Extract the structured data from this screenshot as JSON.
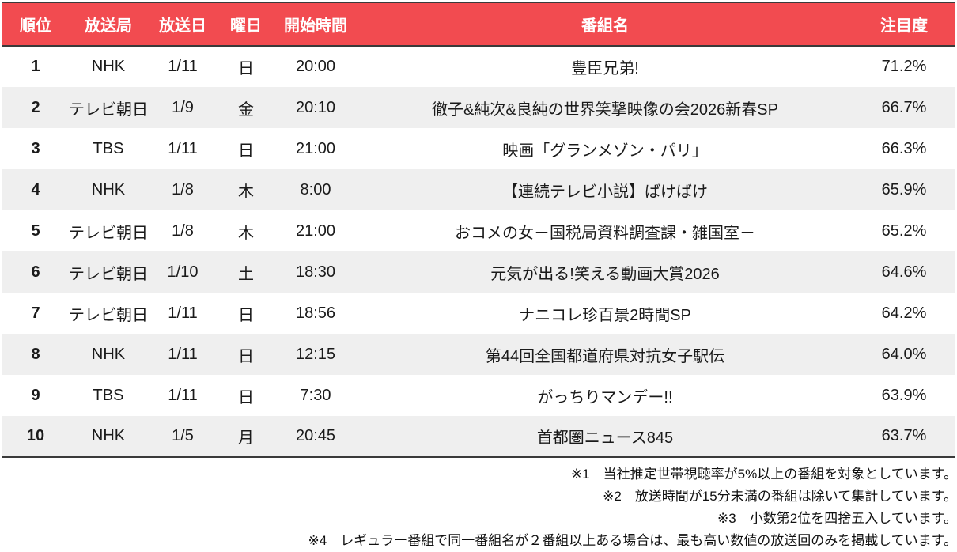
{
  "chart_data": {
    "type": "table",
    "title": "",
    "columns": [
      "順位",
      "放送局",
      "放送日",
      "曜日",
      "開始時間",
      "番組名",
      "注目度"
    ],
    "rows": [
      [
        "1",
        "NHK",
        "1/11",
        "日",
        "20:00",
        "豊臣兄弟!",
        "71.2%"
      ],
      [
        "2",
        "テレビ朝日",
        "1/9",
        "金",
        "20:10",
        "徹子&純次&良純の世界笑撃映像の会2026新春SP",
        "66.7%"
      ],
      [
        "3",
        "TBS",
        "1/11",
        "日",
        "21:00",
        "映画「グランメゾン・パリ」",
        "66.3%"
      ],
      [
        "4",
        "NHK",
        "1/8",
        "木",
        "8:00",
        "【連続テレビ小説】ばけばけ",
        "65.9%"
      ],
      [
        "5",
        "テレビ朝日",
        "1/8",
        "木",
        "21:00",
        "おコメの女－国税局資料調査課・雑国室－",
        "65.2%"
      ],
      [
        "6",
        "テレビ朝日",
        "1/10",
        "土",
        "18:30",
        "元気が出る!笑える動画大賞2026",
        "64.6%"
      ],
      [
        "7",
        "テレビ朝日",
        "1/11",
        "日",
        "18:56",
        "ナニコレ珍百景2時間SP",
        "64.2%"
      ],
      [
        "8",
        "NHK",
        "1/11",
        "日",
        "12:15",
        "第44回全国都道府県対抗女子駅伝",
        "64.0%"
      ],
      [
        "9",
        "TBS",
        "1/11",
        "日",
        "7:30",
        "がっちりマンデー!!",
        "63.9%"
      ],
      [
        "10",
        "NHK",
        "1/5",
        "月",
        "20:45",
        "首都圏ニュース845",
        "63.7%"
      ]
    ]
  },
  "footnotes": [
    "※1　当社推定世帯視聴率が5%以上の番組を対象としています。",
    "※2　放送時間が15分未満の番組は除いて集計しています。",
    "※3　小数第2位を四捨五入しています。",
    "※4　レギュラー番組で同一番組名が２番組以上ある場合は、最も高い数値の放送回のみを掲載しています。"
  ],
  "colors": {
    "header_bg": "#f24b50",
    "header_fg": "#ffffff",
    "stripe": "#efefef",
    "rule": "#3a3a3a"
  }
}
